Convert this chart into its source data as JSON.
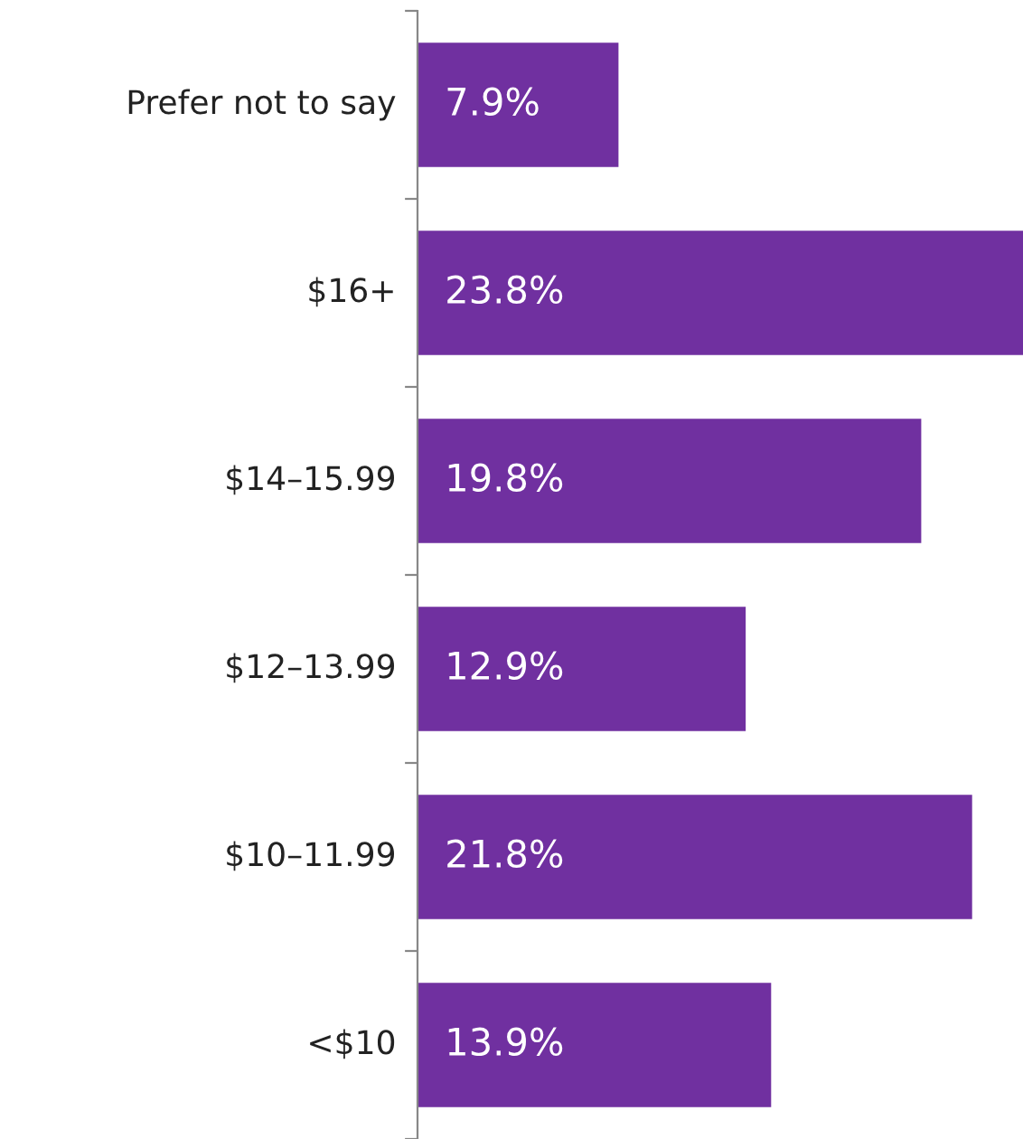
{
  "chart_data": {
    "type": "bar",
    "orientation": "horizontal",
    "categories": [
      "Prefer not to say",
      "$16+",
      "$14–15.99",
      "$12–13.99",
      "$10–11.99",
      "<$10"
    ],
    "values": [
      7.9,
      23.8,
      19.8,
      12.9,
      21.8,
      13.9
    ],
    "value_labels": [
      "7.9%",
      "23.8%",
      "19.8%",
      "12.9%",
      "21.8%",
      "13.9%"
    ],
    "color": "#7030a0",
    "grid": false,
    "legend": false
  }
}
